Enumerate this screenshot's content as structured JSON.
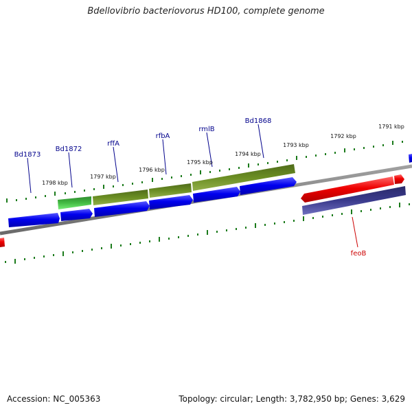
{
  "title": "Bdellovibrio bacteriovorus HD100, complete genome",
  "footer": {
    "accession": "Accession: NC_005363",
    "summary": "Topology: circular; Length: 3,782,950 bp; Genes: 3,629"
  },
  "colors": {
    "forward_gene": "#0000ee",
    "reverse_gene": "#ee0000",
    "rna_gene": "#55bb55",
    "operon": "#6b8e23",
    "reverse_operon": "#3a3a8c",
    "backbone": "#808080",
    "tick": "#1a7a1a",
    "label_forward": "#00008b",
    "label_reverse": "#cc0000"
  },
  "scale_labels": [
    {
      "text": "1798 kbp"
    },
    {
      "text": "1797 kbp"
    },
    {
      "text": "1796 kbp"
    },
    {
      "text": "1795 kbp"
    },
    {
      "text": "1794 kbp"
    },
    {
      "text": "1793 kbp"
    },
    {
      "text": "1792 kbp"
    },
    {
      "text": "1791 kbp"
    }
  ],
  "gene_labels": [
    {
      "text": "Bd1873"
    },
    {
      "text": "Bd1872"
    },
    {
      "text": "rffA"
    },
    {
      "text": "rfbA"
    },
    {
      "text": "rmlB"
    },
    {
      "text": "Bd1868"
    },
    {
      "text": "feoB"
    }
  ]
}
